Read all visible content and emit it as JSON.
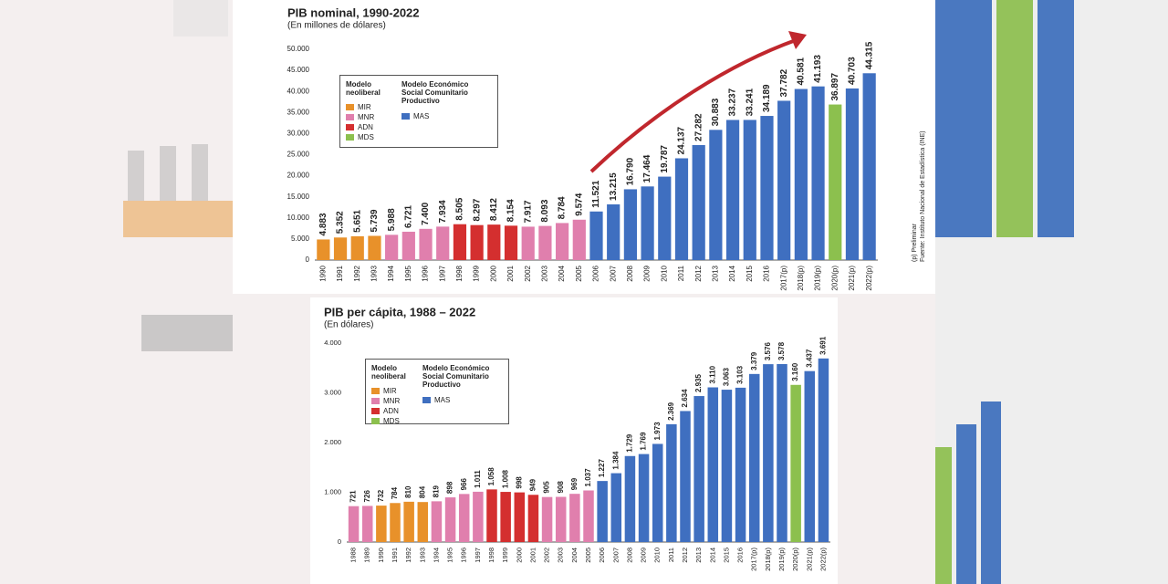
{
  "chart_data": [
    {
      "type": "bar",
      "title": "PIB nominal, 1990-2022",
      "subtitle": "(En millones de dólares)",
      "categories": [
        "1990",
        "1991",
        "1992",
        "1993",
        "1994",
        "1995",
        "1996",
        "1997",
        "1998",
        "1999",
        "2000",
        "2001",
        "2002",
        "2003",
        "2004",
        "2005",
        "2006",
        "2007",
        "2008",
        "2009",
        "2010",
        "2011",
        "2012",
        "2013",
        "2014",
        "2015",
        "2016",
        "2017(p)",
        "2018(p)",
        "2019(p)",
        "2020(p)",
        "2021(p)",
        "2022(p)"
      ],
      "values": [
        4883,
        5352,
        5651,
        5739,
        5988,
        6721,
        7400,
        7934,
        8505,
        8297,
        8412,
        8154,
        7917,
        8093,
        8784,
        9574,
        11521,
        13215,
        16790,
        17464,
        19787,
        24137,
        27282,
        30883,
        33237,
        33241,
        34189,
        37782,
        40581,
        41193,
        36897,
        40703,
        44315
      ],
      "value_labels": [
        "4.883",
        "5.352",
        "5.651",
        "5.739",
        "5.988",
        "6.721",
        "7.400",
        "7.934",
        "8.505",
        "8.297",
        "8.412",
        "8.154",
        "7.917",
        "8.093",
        "8.784",
        "9.574",
        "11.521",
        "13.215",
        "16.790",
        "17.464",
        "19.787",
        "24.137",
        "27.282",
        "30.883",
        "33.237",
        "33.241",
        "34.189",
        "37.782",
        "40.581",
        "41.193",
        "36.897",
        "40.703",
        "44.315"
      ],
      "colors": [
        "#e8912a",
        "#e8912a",
        "#e8912a",
        "#e8912a",
        "#e07fad",
        "#e07fad",
        "#e07fad",
        "#e07fad",
        "#d42f2f",
        "#d42f2f",
        "#d42f2f",
        "#d42f2f",
        "#e07fad",
        "#e07fad",
        "#e07fad",
        "#e07fad",
        "#3f6fc0",
        "#3f6fc0",
        "#3f6fc0",
        "#3f6fc0",
        "#3f6fc0",
        "#3f6fc0",
        "#3f6fc0",
        "#3f6fc0",
        "#3f6fc0",
        "#3f6fc0",
        "#3f6fc0",
        "#3f6fc0",
        "#3f6fc0",
        "#3f6fc0",
        "#8cc04e",
        "#3f6fc0",
        "#3f6fc0"
      ],
      "ylim": [
        0,
        50000
      ],
      "yticks": [
        0,
        {
          "value": 5000,
          "label": "5.000"
        },
        {
          "value": 10000,
          "label": "10.000"
        },
        {
          "value": 15000,
          "label": "15.000"
        },
        {
          "value": 20000,
          "label": "20.000"
        },
        {
          "value": 25000,
          "label": "25.000"
        },
        {
          "value": 30000,
          "label": "30.000"
        },
        {
          "value": 35000,
          "label": "35.000"
        },
        {
          "value": 40000,
          "label": "40.000"
        },
        {
          "value": 45000,
          "label": "45.000"
        },
        {
          "value": 50000,
          "label": "50.000"
        }
      ],
      "grid": false,
      "legend": [
        {
          "title": "Modelo neoliberal",
          "items": [
            {
              "name": "MIR",
              "color": "#e8912a"
            },
            {
              "name": "MNR",
              "color": "#e07fad"
            },
            {
              "name": "ADN",
              "color": "#d42f2f"
            },
            {
              "name": "MDS",
              "color": "#8cc04e"
            }
          ]
        },
        {
          "title": "Modelo Económico Social Comunitario Productivo",
          "items": [
            {
              "name": "MAS",
              "color": "#3f6fc0"
            }
          ]
        }
      ]
    },
    {
      "type": "bar",
      "title": "PIB per cápita, 1988 – 2022",
      "subtitle": "(En dólares)",
      "categories": [
        "1988",
        "1989",
        "1990",
        "1991",
        "1992",
        "1993",
        "1994",
        "1995",
        "1996",
        "1997",
        "1998",
        "1999",
        "2000",
        "2001",
        "2002",
        "2003",
        "2004",
        "2005",
        "2006",
        "2007",
        "2008",
        "2009",
        "2010",
        "2011",
        "2012",
        "2013",
        "2014",
        "2015",
        "2016",
        "2017(p)",
        "2018(p)",
        "2019(p)",
        "2020(p)",
        "2021(p)",
        "2022(p)"
      ],
      "values": [
        721,
        726,
        732,
        784,
        810,
        804,
        819,
        898,
        966,
        1011,
        1058,
        1008,
        998,
        949,
        905,
        908,
        969,
        1037,
        1227,
        1384,
        1729,
        1769,
        1973,
        2369,
        2634,
        2935,
        3110,
        3063,
        3103,
        3379,
        3576,
        3578,
        3160,
        3437,
        3691
      ],
      "value_labels": [
        "721",
        "726",
        "732",
        "784",
        "810",
        "804",
        "819",
        "898",
        "966",
        "1.011",
        "1.058",
        "1.008",
        "998",
        "949",
        "905",
        "908",
        "969",
        "1.037",
        "1.227",
        "1.384",
        "1.729",
        "1.769",
        "1.973",
        "2.369",
        "2.634",
        "2.935",
        "3.110",
        "3.063",
        "3.103",
        "3.379",
        "3.576",
        "3.578",
        "3.160",
        "3.437",
        "3.691"
      ],
      "colors": [
        "#e07fad",
        "#e07fad",
        "#e8912a",
        "#e8912a",
        "#e8912a",
        "#e8912a",
        "#e07fad",
        "#e07fad",
        "#e07fad",
        "#e07fad",
        "#d42f2f",
        "#d42f2f",
        "#d42f2f",
        "#d42f2f",
        "#e07fad",
        "#e07fad",
        "#e07fad",
        "#e07fad",
        "#3f6fc0",
        "#3f6fc0",
        "#3f6fc0",
        "#3f6fc0",
        "#3f6fc0",
        "#3f6fc0",
        "#3f6fc0",
        "#3f6fc0",
        "#3f6fc0",
        "#3f6fc0",
        "#3f6fc0",
        "#3f6fc0",
        "#3f6fc0",
        "#3f6fc0",
        "#8cc04e",
        "#3f6fc0",
        "#3f6fc0"
      ],
      "ylim": [
        0,
        4000
      ],
      "yticks": [
        0,
        {
          "value": 1000,
          "label": "1.000"
        },
        {
          "value": 2000,
          "label": "2.000"
        },
        {
          "value": 3000,
          "label": "3.000"
        },
        {
          "value": 4000,
          "label": "4.000"
        }
      ],
      "grid": false,
      "legend": [
        {
          "title": "Modelo neoliberal",
          "items": [
            {
              "name": "MIR",
              "color": "#e8912a"
            },
            {
              "name": "MNR",
              "color": "#e07fad"
            },
            {
              "name": "ADN",
              "color": "#d42f2f"
            },
            {
              "name": "MDS",
              "color": "#8cc04e"
            }
          ]
        },
        {
          "title": "Modelo Económico Social Comunitario Productivo",
          "items": [
            {
              "name": "MAS",
              "color": "#3f6fc0"
            }
          ]
        }
      ]
    }
  ],
  "notes": {
    "preliminary": "(p) Preliminar",
    "source": "Fuente: Instituto Nacional de Estadística (INE)"
  }
}
